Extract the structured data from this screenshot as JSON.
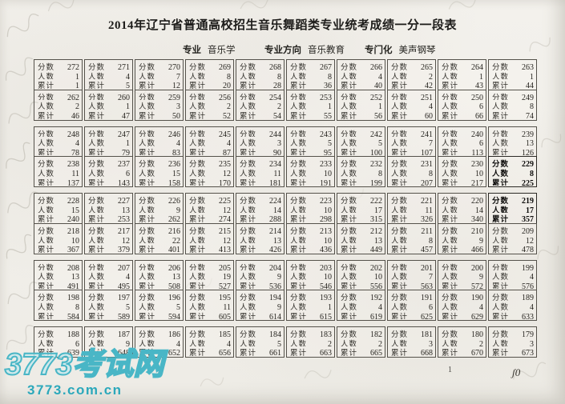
{
  "title": "2014年辽宁省普通高校招生音乐舞蹈类专业统考成绩一分一段表",
  "meta": {
    "items": [
      {
        "label": "专业",
        "value": "音乐学"
      },
      {
        "label": "专业方向",
        "value": "音乐教育"
      },
      {
        "label": "专门化",
        "value": "美声钢琴"
      }
    ]
  },
  "table": {
    "line_labels": {
      "score": "分数",
      "count": "人数",
      "cumulative": "累计"
    },
    "rows": [
      [
        [
          272,
          1,
          1
        ],
        [
          271,
          4,
          5
        ],
        [
          270,
          7,
          12
        ],
        [
          269,
          8,
          20
        ],
        [
          268,
          8,
          28
        ],
        [
          267,
          8,
          36
        ],
        [
          266,
          4,
          40
        ],
        [
          265,
          2,
          42
        ],
        [
          264,
          1,
          43
        ],
        [
          263,
          1,
          44
        ]
      ],
      [
        [
          262,
          2,
          46
        ],
        [
          260,
          1,
          47
        ],
        [
          259,
          3,
          50
        ],
        [
          256,
          2,
          52
        ],
        [
          254,
          2,
          54
        ],
        [
          253,
          1,
          55
        ],
        [
          252,
          1,
          56
        ],
        [
          251,
          4,
          60
        ],
        [
          250,
          6,
          66
        ],
        [
          249,
          8,
          74
        ]
      ],
      [
        [
          248,
          4,
          78
        ],
        [
          247,
          1,
          79
        ],
        [
          246,
          4,
          83
        ],
        [
          245,
          4,
          87
        ],
        [
          244,
          3,
          90
        ],
        [
          243,
          5,
          95
        ],
        [
          242,
          5,
          100
        ],
        [
          241,
          7,
          107
        ],
        [
          240,
          6,
          113
        ],
        [
          239,
          13,
          126
        ]
      ],
      [
        [
          238,
          11,
          137
        ],
        [
          237,
          6,
          143
        ],
        [
          236,
          15,
          158
        ],
        [
          235,
          12,
          170
        ],
        [
          234,
          11,
          181
        ],
        [
          233,
          10,
          191
        ],
        [
          232,
          8,
          199
        ],
        [
          231,
          8,
          207
        ],
        [
          230,
          10,
          217
        ],
        [
          229,
          8,
          225
        ]
      ],
      [
        [
          228,
          15,
          240
        ],
        [
          227,
          13,
          253
        ],
        [
          226,
          9,
          262
        ],
        [
          225,
          12,
          274
        ],
        [
          224,
          14,
          288
        ],
        [
          223,
          10,
          298
        ],
        [
          222,
          17,
          315
        ],
        [
          221,
          11,
          326
        ],
        [
          220,
          14,
          340
        ],
        [
          219,
          17,
          357
        ]
      ],
      [
        [
          218,
          10,
          367
        ],
        [
          217,
          12,
          379
        ],
        [
          216,
          22,
          401
        ],
        [
          215,
          12,
          413
        ],
        [
          214,
          13,
          426
        ],
        [
          213,
          10,
          436
        ],
        [
          212,
          13,
          449
        ],
        [
          211,
          8,
          457
        ],
        [
          210,
          9,
          466
        ],
        [
          209,
          12,
          478
        ]
      ],
      [
        [
          208,
          13,
          491
        ],
        [
          207,
          4,
          495
        ],
        [
          206,
          13,
          508
        ],
        [
          205,
          19,
          527
        ],
        [
          204,
          9,
          536
        ],
        [
          203,
          10,
          546
        ],
        [
          202,
          10,
          556
        ],
        [
          201,
          7,
          563
        ],
        [
          200,
          9,
          572
        ],
        [
          199,
          4,
          576
        ]
      ],
      [
        [
          198,
          8,
          584
        ],
        [
          197,
          5,
          589
        ],
        [
          196,
          5,
          594
        ],
        [
          195,
          11,
          605
        ],
        [
          194,
          9,
          614
        ],
        [
          193,
          1,
          615
        ],
        [
          192,
          4,
          619
        ],
        [
          191,
          6,
          625
        ],
        [
          190,
          4,
          629
        ],
        [
          189,
          4,
          633
        ]
      ],
      [
        [
          188,
          6,
          639
        ],
        [
          187,
          9,
          648
        ],
        [
          186,
          4,
          652
        ],
        [
          185,
          4,
          656
        ],
        [
          184,
          5,
          661
        ],
        [
          183,
          2,
          663
        ],
        [
          182,
          2,
          665
        ],
        [
          181,
          3,
          668
        ],
        [
          180,
          2,
          670
        ],
        [
          179,
          3,
          673
        ]
      ]
    ],
    "row_grouping": [
      [
        0,
        1
      ],
      [
        2,
        3
      ],
      [
        4,
        5
      ],
      [
        6,
        7
      ],
      [
        8
      ]
    ],
    "bold_cells": [
      [
        3,
        9
      ],
      [
        4,
        9
      ]
    ]
  },
  "watermark": {
    "site_name": "3773考试网",
    "site_url": "3773.com.cn",
    "accent_color": "#49b6c6"
  },
  "footer": {
    "page_number": "1",
    "handwritten_mark": "ʃ0"
  }
}
